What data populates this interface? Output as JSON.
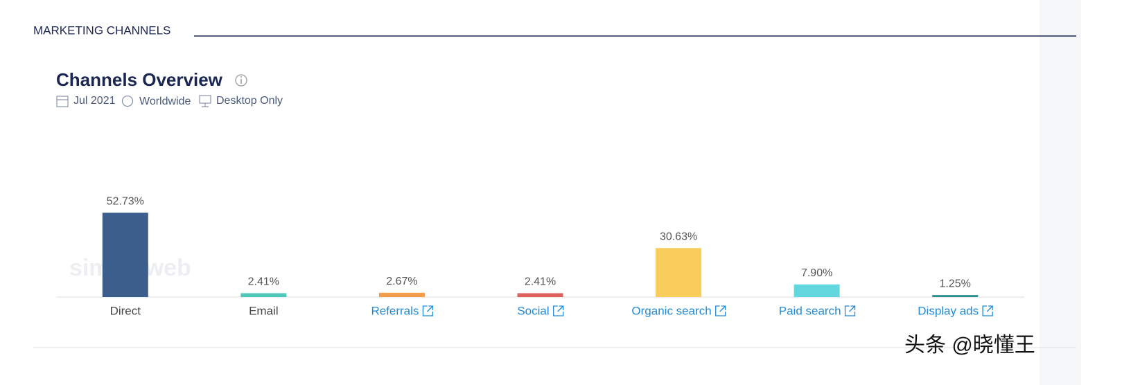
{
  "section_title": "MARKETING CHANNELS",
  "watermark": "similarweb",
  "credit": "头条 @晓懂王",
  "chart_data": {
    "type": "bar",
    "title": "Channels Overview",
    "filters": [
      "Jul 2021",
      "Worldwide",
      "Desktop Only"
    ],
    "categories": [
      "Direct",
      "Email",
      "Referrals",
      "Social",
      "Organic search",
      "Paid search",
      "Display ads"
    ],
    "values": [
      52.73,
      2.41,
      2.67,
      2.41,
      30.63,
      7.9,
      1.25
    ],
    "value_labels": [
      "52.73%",
      "2.41%",
      "2.67%",
      "2.41%",
      "30.63%",
      "7.90%",
      "1.25%"
    ],
    "colors": [
      "#3b5e8c",
      "#4ec9b9",
      "#f39c4a",
      "#e0605c",
      "#f9cd5a",
      "#62d8de",
      "#2f8f8f"
    ],
    "links": [
      false,
      false,
      true,
      true,
      true,
      true,
      true
    ]
  }
}
